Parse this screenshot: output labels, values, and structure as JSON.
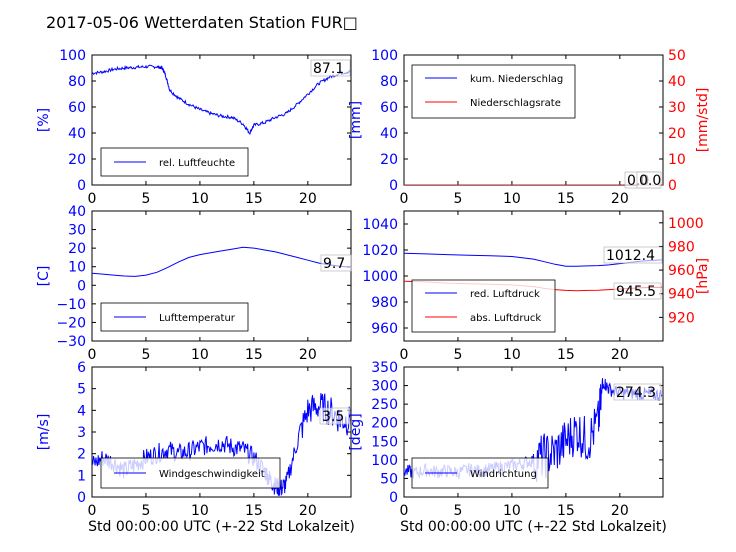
{
  "title": "2017-05-06 Wetterdaten Station FUR□",
  "colors": {
    "left_axis": "#0000ff",
    "right_axis": "#ff0000",
    "frame": "#000000"
  },
  "chart_data": [
    {
      "id": "humidity",
      "type": "line",
      "xlim": [
        0,
        24
      ],
      "ylim": [
        0,
        100
      ],
      "xticks": [
        "0",
        "5",
        "10",
        "15",
        "20"
      ],
      "yticks": [
        "0",
        "20",
        "40",
        "60",
        "80",
        "100"
      ],
      "ylabel": "[%]",
      "xlabel": "",
      "legend_placement": "lower-left",
      "series": [
        {
          "name": "rel. Luftfeuchte",
          "color": "#0000ff",
          "axis": "left",
          "x": [
            0,
            1,
            2,
            3,
            4,
            5,
            6,
            6.5,
            6.8,
            7.2,
            8,
            9,
            10,
            11,
            12,
            13,
            14,
            14.6,
            15,
            16,
            17,
            18,
            19,
            20,
            21,
            22,
            23,
            23.9
          ],
          "y": [
            86,
            87,
            89,
            90,
            90.5,
            91,
            91,
            90,
            85,
            73,
            67,
            62,
            58,
            55,
            53,
            52,
            47,
            40,
            46,
            48,
            52,
            55,
            62,
            70,
            78,
            83,
            86,
            87.1
          ]
        }
      ],
      "annotations": [
        "87.1"
      ]
    },
    {
      "id": "precip",
      "type": "line",
      "xlim": [
        0,
        24
      ],
      "ylim": [
        0,
        100
      ],
      "y2lim": [
        0,
        50
      ],
      "xticks": [
        "0",
        "5",
        "10",
        "15",
        "20"
      ],
      "yticks": [
        "0",
        "20",
        "40",
        "60",
        "80",
        "100"
      ],
      "y2ticks": [
        "0",
        "10",
        "20",
        "30",
        "40",
        "50"
      ],
      "ylabel": "[mm]",
      "y2label": "[mm/std]",
      "xlabel": "",
      "legend_placement": "upper-left",
      "series": [
        {
          "name": "kum. Niederschlag",
          "color": "#0000ff",
          "axis": "left",
          "x": [
            0,
            24
          ],
          "y": [
            0,
            0
          ]
        },
        {
          "name": "Niederschlagsrate",
          "color": "#ff0000",
          "axis": "right",
          "x": [
            0,
            24
          ],
          "y": [
            0,
            0
          ]
        }
      ],
      "annotations": [
        "0.0",
        "0.0"
      ]
    },
    {
      "id": "temperature",
      "type": "line",
      "xlim": [
        0,
        24
      ],
      "ylim": [
        -30,
        40
      ],
      "xticks": [
        "0",
        "5",
        "10",
        "15",
        "20"
      ],
      "yticks": [
        "−30",
        "−20",
        "−10",
        "0",
        "10",
        "20",
        "30",
        "40"
      ],
      "ylabel": "[C]",
      "xlabel": "",
      "legend_placement": "lower-left",
      "series": [
        {
          "name": "Lufttemperatur",
          "color": "#0000ff",
          "axis": "left",
          "x": [
            0,
            1,
            2,
            3,
            4,
            5,
            6,
            7,
            8,
            9,
            10,
            11,
            12,
            13,
            14,
            15,
            16,
            17,
            18,
            19,
            20,
            21,
            22,
            23,
            23.9
          ],
          "y": [
            6.5,
            6,
            5.5,
            5,
            4.8,
            5.5,
            7,
            9.5,
            12.5,
            15,
            16.5,
            17.5,
            18.5,
            19.5,
            20.5,
            20,
            19,
            18,
            16.5,
            15,
            13.5,
            12,
            11,
            10.2,
            9.7
          ]
        }
      ],
      "annotations": [
        "9.7"
      ]
    },
    {
      "id": "pressure",
      "type": "line",
      "xlim": [
        0,
        24
      ],
      "ylim": [
        950,
        1050
      ],
      "y2lim": [
        900,
        1010
      ],
      "xticks": [
        "0",
        "5",
        "10",
        "15",
        "20"
      ],
      "yticks": [
        "960",
        "980",
        "1000",
        "1020",
        "1040"
      ],
      "y2ticks": [
        "920",
        "940",
        "960",
        "980",
        "1000"
      ],
      "ylabel": "",
      "y2label": "[hPa]",
      "xlabel": "",
      "legend_placement": "lower-left",
      "series": [
        {
          "name": "red. Luftdruck",
          "color": "#0000ff",
          "axis": "left",
          "x": [
            0,
            2,
            4,
            6,
            8,
            10,
            12,
            13,
            14,
            15,
            16,
            17,
            18,
            19,
            20,
            21,
            22,
            23,
            23.9
          ],
          "y": [
            1017.5,
            1017,
            1016.5,
            1016,
            1015.5,
            1015,
            1013,
            1011,
            1009,
            1007.5,
            1007.5,
            1007.8,
            1008,
            1008.5,
            1009.5,
            1010.5,
            1011.5,
            1012,
            1012.4
          ]
        },
        {
          "name": "abs. Luftdruck",
          "color": "#ff0000",
          "axis": "right",
          "x": [
            0,
            2,
            4,
            6,
            8,
            10,
            12,
            13,
            14,
            15,
            16,
            17,
            18,
            19,
            20,
            21,
            22,
            23,
            23.9
          ],
          "y": [
            950.5,
            950,
            949,
            948.5,
            948,
            947.5,
            946,
            944.5,
            943.5,
            942.8,
            942.5,
            942.8,
            943,
            943.5,
            944,
            944.5,
            945,
            945.3,
            945.5
          ]
        }
      ],
      "annotations": [
        "1012.4",
        "945.5"
      ]
    },
    {
      "id": "wind",
      "type": "line",
      "xlim": [
        0,
        24
      ],
      "ylim": [
        0,
        6
      ],
      "xticks": [
        "0",
        "5",
        "10",
        "15",
        "20"
      ],
      "yticks": [
        "0",
        "1",
        "2",
        "3",
        "4",
        "5",
        "6"
      ],
      "ylabel": "[m/s]",
      "xlabel": "Std 00:00:00 UTC (+-22 Std Lokalzeit)",
      "legend_placement": "lower-left",
      "series": [
        {
          "name": "Windgeschwindigkeit",
          "color": "#0000ff",
          "axis": "left",
          "x": [
            0,
            1,
            2,
            3,
            4,
            5,
            6,
            7,
            8,
            9,
            10,
            11,
            12,
            13,
            14,
            15,
            16,
            16.5,
            17,
            17.5,
            18,
            19,
            20,
            21,
            22,
            23,
            23.9
          ],
          "y": [
            1.5,
            1.8,
            1.6,
            1.2,
            1.5,
            1.8,
            2.0,
            2.2,
            2.0,
            2.1,
            2.3,
            2.4,
            2.5,
            2.3,
            2.2,
            1.8,
            1.2,
            0.8,
            0.5,
            0.4,
            0.6,
            2.5,
            4.0,
            4.2,
            4.0,
            3.6,
            3.5
          ]
        }
      ],
      "annotations": [
        "3.5"
      ]
    },
    {
      "id": "winddir",
      "type": "line",
      "xlim": [
        0,
        24
      ],
      "ylim": [
        0,
        350
      ],
      "xticks": [
        "0",
        "5",
        "10",
        "15",
        "20"
      ],
      "yticks": [
        "0",
        "50",
        "100",
        "150",
        "200",
        "250",
        "300",
        "350"
      ],
      "ylabel": "[deg]",
      "xlabel": "Std 00:00:00 UTC (+-22 Std Lokalzeit)",
      "legend_placement": "lower-left",
      "series": [
        {
          "name": "Windrichtung",
          "color": "#0000ff",
          "axis": "left",
          "x": [
            0,
            1,
            2,
            3,
            4,
            5,
            6,
            7,
            8,
            9,
            10,
            11,
            12,
            13,
            14,
            15,
            16,
            17,
            18,
            18.5,
            19,
            20,
            21,
            22,
            23,
            23.9
          ],
          "y": [
            70,
            65,
            72,
            68,
            70,
            66,
            74,
            70,
            75,
            80,
            85,
            90,
            100,
            110,
            120,
            150,
            180,
            150,
            200,
            310,
            290,
            280,
            280,
            278,
            276,
            274.3
          ]
        }
      ],
      "annotations": [
        "274.3"
      ]
    }
  ]
}
